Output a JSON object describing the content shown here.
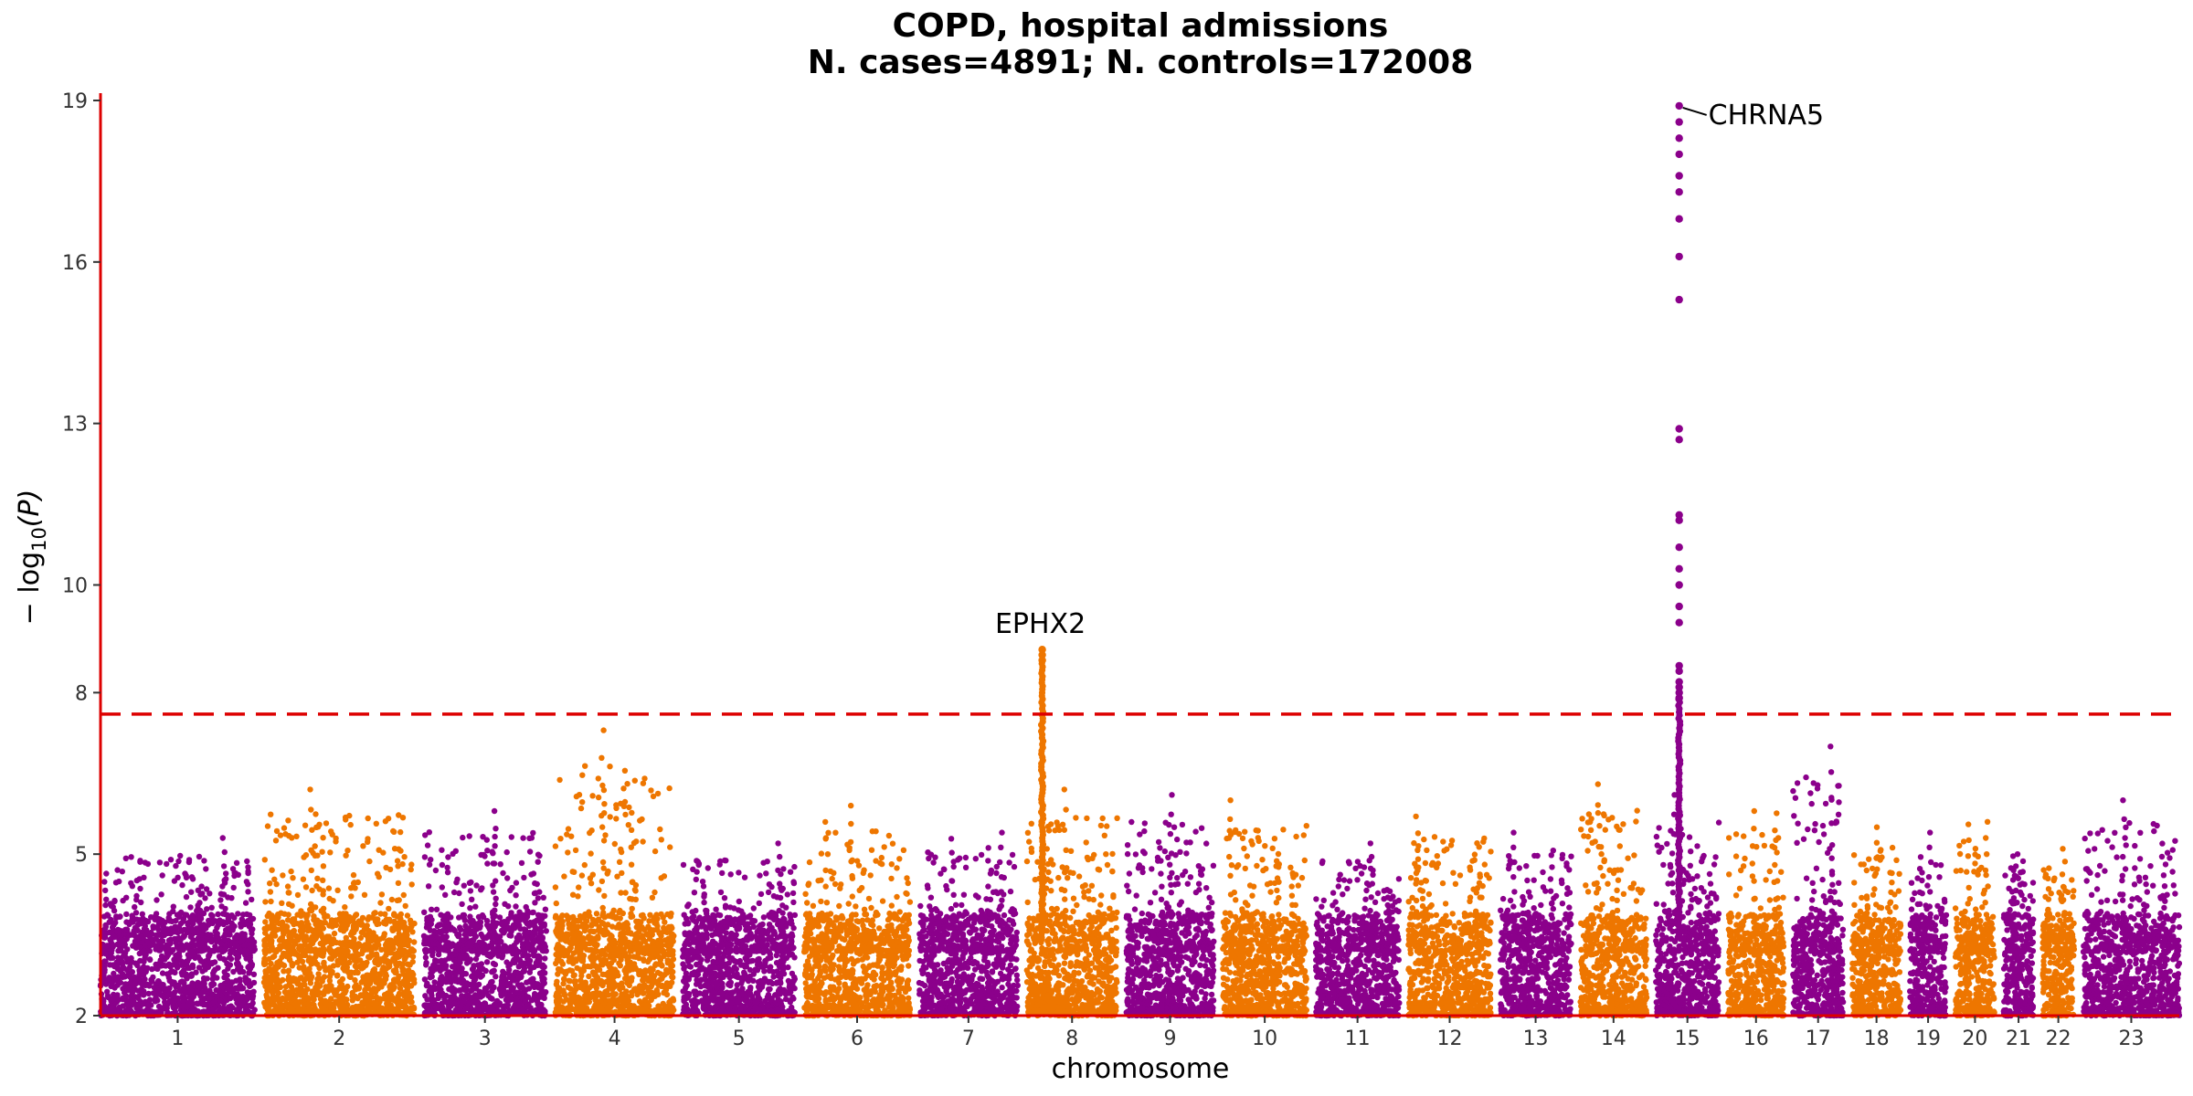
{
  "chart_data": {
    "type": "scatter",
    "subtype": "manhattan",
    "title": "COPD, hospital admissions",
    "subtitle": "N. cases=4891; N. controls=172008",
    "xlabel": "chromosome",
    "ylabel_prefix": "− log",
    "ylabel_sub": "10",
    "ylabel_suffix": "(P)",
    "ylim": [
      2,
      19
    ],
    "yticks": [
      2,
      5,
      8,
      10,
      13,
      16,
      19
    ],
    "significance_threshold": 7.6,
    "colors": {
      "odd": "#8B008B",
      "even": "#EE7600",
      "axis": "#DD0000",
      "threshold": "#DD0000"
    },
    "chromosomes": [
      {
        "label": "1",
        "length": 249,
        "peak": 5.3
      },
      {
        "label": "2",
        "length": 243,
        "peak": 6.2
      },
      {
        "label": "3",
        "length": 198,
        "peak": 5.8
      },
      {
        "label": "4",
        "length": 191,
        "peak": 7.3
      },
      {
        "label": "5",
        "length": 181,
        "peak": 5.2
      },
      {
        "label": "6",
        "length": 171,
        "peak": 5.9
      },
      {
        "label": "7",
        "length": 159,
        "peak": 5.4
      },
      {
        "label": "8",
        "length": 146,
        "peak": 6.2
      },
      {
        "label": "9",
        "length": 141,
        "peak": 6.1
      },
      {
        "label": "10",
        "length": 135,
        "peak": 6.0
      },
      {
        "label": "11",
        "length": 135,
        "peak": 5.2
      },
      {
        "label": "12",
        "length": 133,
        "peak": 5.7
      },
      {
        "label": "13",
        "length": 115,
        "peak": 5.4
      },
      {
        "label": "14",
        "length": 107,
        "peak": 6.3
      },
      {
        "label": "15",
        "length": 102,
        "peak": 6.1
      },
      {
        "label": "16",
        "length": 90,
        "peak": 5.8
      },
      {
        "label": "17",
        "length": 81,
        "peak": 7.0
      },
      {
        "label": "18",
        "length": 78,
        "peak": 5.5
      },
      {
        "label": "19",
        "length": 59,
        "peak": 5.4
      },
      {
        "label": "20",
        "length": 63,
        "peak": 5.6
      },
      {
        "label": "21",
        "length": 48,
        "peak": 5.0
      },
      {
        "label": "22",
        "length": 51,
        "peak": 5.1
      },
      {
        "label": "23",
        "length": 155,
        "peak": 6.0
      }
    ],
    "highlight_peaks": [
      {
        "chromosome": "8",
        "relative_position": 0.17,
        "values": [
          8.6,
          8.7,
          8.8
        ]
      },
      {
        "chromosome": "15",
        "relative_position": 0.37,
        "values": [
          7.9,
          8.0,
          8.1,
          8.2,
          8.4,
          8.5,
          9.3,
          9.6,
          10.0,
          10.3,
          10.7,
          11.2,
          11.3,
          12.7,
          12.9,
          15.3,
          16.1,
          16.8,
          17.3,
          17.6,
          18.0,
          18.3,
          18.6,
          18.9
        ]
      }
    ],
    "annotations": [
      {
        "label": "EPHX2",
        "chromosome": "8",
        "value": 8.8
      },
      {
        "label": "CHRNA5",
        "chromosome": "15",
        "value": 18.9
      }
    ]
  }
}
